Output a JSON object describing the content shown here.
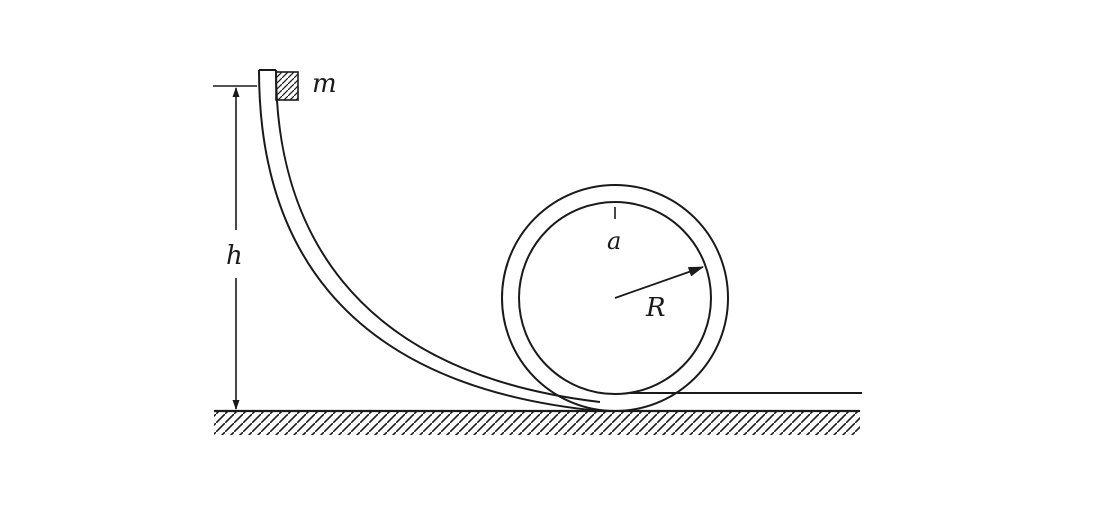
{
  "labels": {
    "mass": "m",
    "height": "h",
    "point": "a",
    "radius": "R"
  },
  "colors": {
    "ink": "#1a1a1a",
    "background": "#ffffff"
  }
}
